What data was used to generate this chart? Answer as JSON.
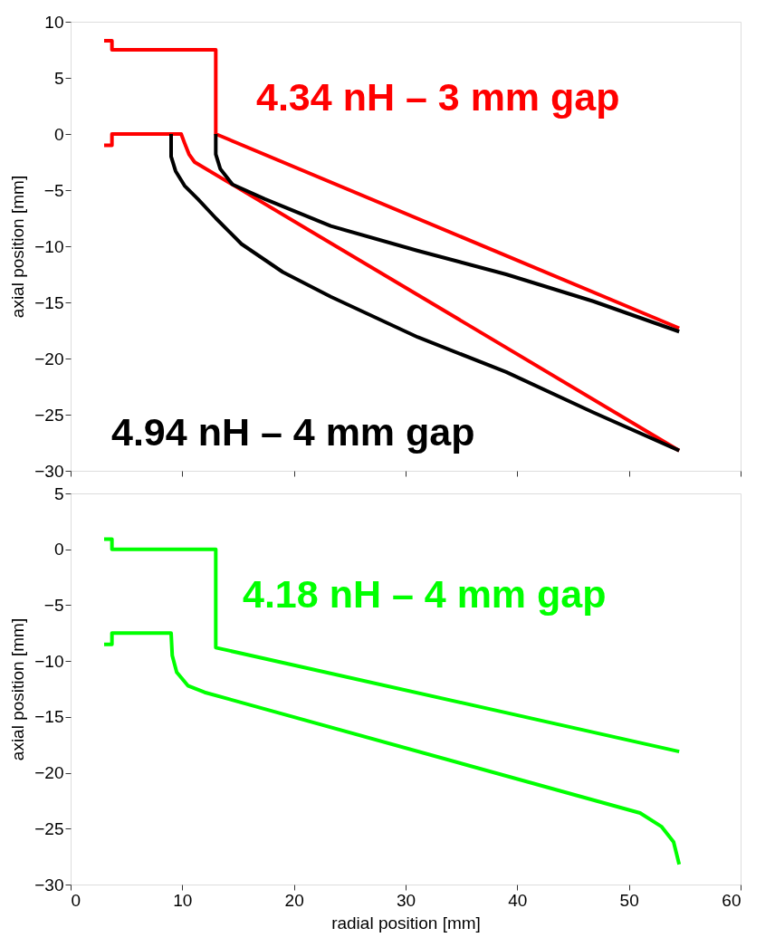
{
  "chart_data": [
    {
      "type": "line",
      "ylabel": "axial position [mm]",
      "xlim": [
        0,
        60
      ],
      "xticks": [
        0,
        10,
        20,
        30,
        40,
        50,
        60
      ],
      "ylim": [
        -30,
        10
      ],
      "yticks": [
        -30,
        -25,
        -20,
        -15,
        -10,
        -5,
        0,
        5,
        10
      ],
      "tick_labels": "y",
      "grid": false,
      "marker": "none",
      "line_style": "solid",
      "series": [
        {
          "name": "4.34 nH – 3 mm gap",
          "color": "#ff0000",
          "x": [
            3,
            3.7,
            3.7,
            13,
            13,
            54.5
          ],
          "values": [
            8.3,
            8.3,
            7.5,
            7.5,
            0,
            -17.3
          ]
        },
        {
          "color": "#ff0000",
          "x": [
            3,
            3.7,
            3.7,
            9.9,
            10.2,
            10.6,
            11.1,
            54.5
          ],
          "values": [
            -1,
            -1,
            0,
            0,
            -0.8,
            -1.8,
            -2.5,
            -28.2
          ]
        },
        {
          "name": "4.94 nH – 4 mm gap",
          "color": "#000000",
          "x": [
            13,
            13,
            13.4,
            14.5,
            17.4,
            23.3,
            31.1,
            39,
            46.8,
            54.5
          ],
          "values": [
            0,
            -1.8,
            -3.1,
            -4.5,
            -5.8,
            -8.2,
            -10.4,
            -12.5,
            -14.9,
            -17.6
          ]
        },
        {
          "color": "#000000",
          "x": [
            9,
            9,
            9.4,
            10.2,
            11.4,
            13,
            15.3,
            19,
            23.3,
            31.1,
            39,
            46.8,
            54.5
          ],
          "values": [
            0,
            -2,
            -3.3,
            -4.6,
            -5.8,
            -7.5,
            -9.8,
            -12.3,
            -14.5,
            -18.1,
            -21.2,
            -24.8,
            -28.2
          ]
        }
      ]
    },
    {
      "type": "line",
      "xlabel": "radial position [mm]",
      "ylabel": "axial position [mm]",
      "xlim": [
        0,
        60
      ],
      "xticks": [
        0,
        10,
        20,
        30,
        40,
        50,
        60
      ],
      "ylim": [
        -30,
        5
      ],
      "yticks": [
        -30,
        -25,
        -20,
        -15,
        -10,
        -5,
        0,
        5
      ],
      "grid": false,
      "marker": "none",
      "line_style": "solid",
      "series": [
        {
          "name": "4.18 nH – 4 mm gap",
          "color": "#00ff00",
          "x": [
            3,
            3.7,
            3.7,
            13,
            13,
            54.5
          ],
          "values": [
            0.9,
            0.9,
            0,
            0,
            -8.8,
            -18.1
          ]
        },
        {
          "color": "#00ff00",
          "x": [
            3,
            3.7,
            3.7,
            9,
            9.1,
            9.5,
            10.5,
            12,
            51,
            52.9,
            54,
            54.5
          ],
          "values": [
            -8.5,
            -8.5,
            -7.5,
            -7.5,
            -9.5,
            -11,
            -12.2,
            -12.8,
            -23.6,
            -24.8,
            -26.2,
            -28.2
          ]
        }
      ]
    }
  ]
}
